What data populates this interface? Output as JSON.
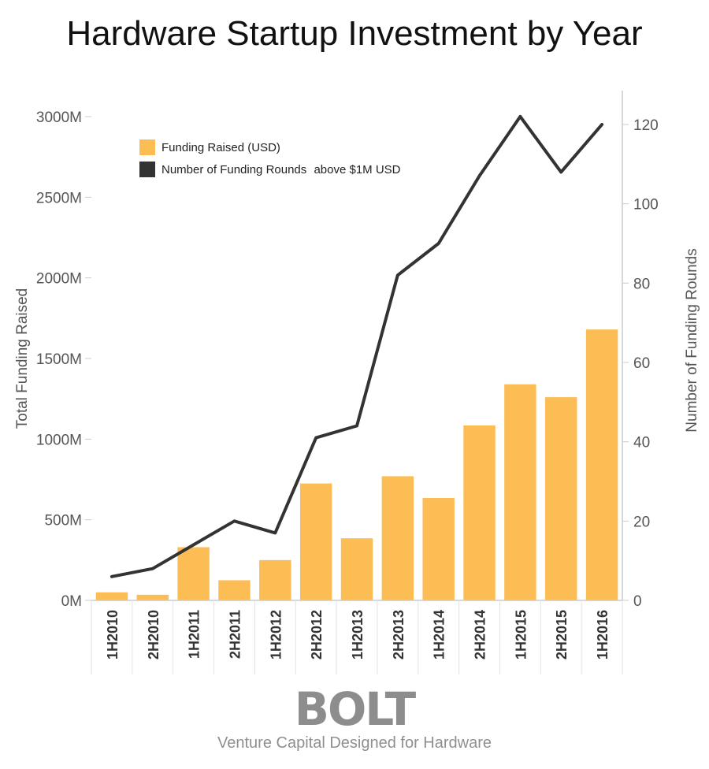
{
  "title": "Hardware Startup Investment by Year",
  "colors": {
    "bar": "#FDBD55",
    "line": "#333333",
    "axis": "#cccccc",
    "tick_text": "#555555",
    "category_text": "#333333"
  },
  "chart_data": {
    "type": "bar+line",
    "categories": [
      "1H2010",
      "2H2010",
      "1H2011",
      "2H2011",
      "1H2012",
      "2H2012",
      "1H2013",
      "2H2013",
      "1H2014",
      "2H2014",
      "1H2015",
      "2H2015",
      "1H2016"
    ],
    "series": [
      {
        "name": "Funding Raised (USD)",
        "type": "bar",
        "axis": "left",
        "values": [
          50,
          35,
          330,
          125,
          250,
          725,
          385,
          770,
          635,
          1085,
          1340,
          1260,
          1680
        ]
      },
      {
        "name": "Number of Funding Rounds",
        "name_suffix": "above $1M USD",
        "type": "line",
        "axis": "right",
        "values": [
          6,
          8,
          14,
          20,
          17,
          41,
          44,
          82,
          90,
          107,
          122,
          108,
          120
        ]
      }
    ],
    "y_left": {
      "label": "Total Funding Raised",
      "range": [
        0,
        3000
      ],
      "ticks": [
        {
          "v": 0,
          "t": "0M"
        },
        {
          "v": 500,
          "t": "500M"
        },
        {
          "v": 1000,
          "t": "1000M"
        },
        {
          "v": 1500,
          "t": "1500M"
        },
        {
          "v": 2000,
          "t": "2000M"
        },
        {
          "v": 2500,
          "t": "2500M"
        },
        {
          "v": 3000,
          "t": "3000M"
        }
      ]
    },
    "y_right": {
      "label": "Number of Funding Rounds",
      "range": [
        0,
        120
      ],
      "ticks": [
        {
          "v": 0,
          "t": "0"
        },
        {
          "v": 20,
          "t": "20"
        },
        {
          "v": 40,
          "t": "40"
        },
        {
          "v": 60,
          "t": "60"
        },
        {
          "v": 80,
          "t": "80"
        },
        {
          "v": 100,
          "t": "100"
        },
        {
          "v": 120,
          "t": "120"
        }
      ]
    },
    "legend_position": "top-left",
    "grid": false
  },
  "footer": {
    "logo_text": "BOLT",
    "tagline": "Venture Capital Designed for Hardware"
  }
}
